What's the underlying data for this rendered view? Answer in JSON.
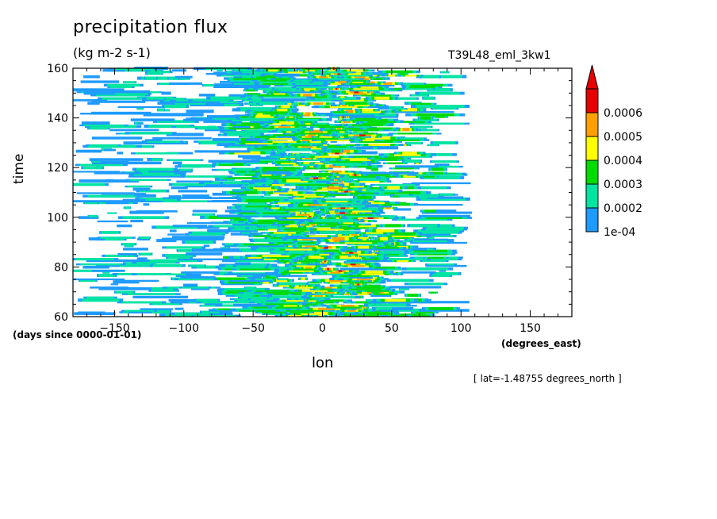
{
  "chart_data": {
    "type": "heatmap",
    "title": "precipitation flux",
    "units": "(kg m-2 s-1)",
    "run_label": "T39L48_eml_3kw1",
    "xlabel": "lon",
    "ylabel": "time",
    "x_units": "(degrees_east)",
    "y_units": "(days since 0000-01-01)",
    "annotation": "[ lat=-1.48755 degrees_north ]",
    "xlim": [
      -180,
      180
    ],
    "ylim": [
      60,
      160
    ],
    "x_ticks": [
      -150,
      -100,
      -50,
      0,
      50,
      100,
      150
    ],
    "y_ticks": [
      60,
      80,
      100,
      120,
      140,
      160
    ],
    "colorbar": {
      "levels": [
        "1e-04",
        "0.0002",
        "0.0003",
        "0.0004",
        "0.0005",
        "0.0006"
      ],
      "colors": [
        "#1e9bff",
        "#00e6a0",
        "#00dc00",
        "#ffff00",
        "#ffa000",
        "#e60000"
      ],
      "extend": "max"
    },
    "description_of_field": "Precipitation streaks concentrated between about -170 and 90 degrees east, propagating eastward over time; strongest maxima near lon 0 to 40."
  }
}
